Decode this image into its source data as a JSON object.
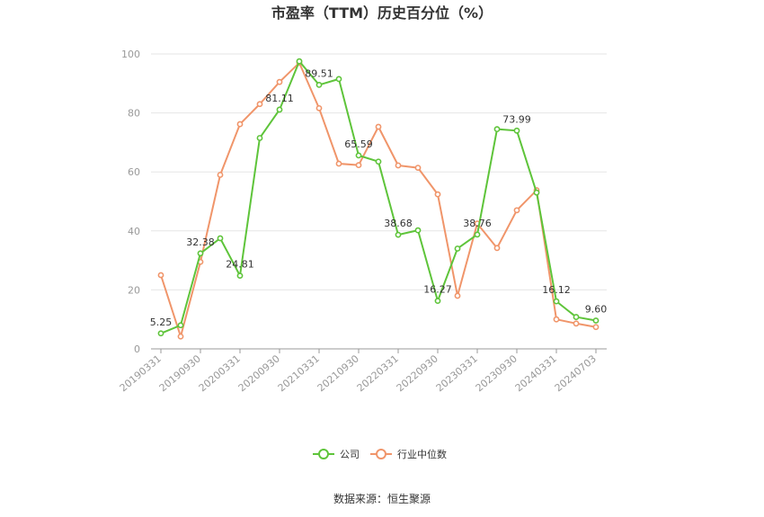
{
  "chart_data": {
    "type": "line",
    "title": "市盈率（TTM）历史百分位（%）",
    "source": "数据来源：恒生聚源",
    "ylim": [
      0,
      100
    ],
    "yticks": [
      0,
      20,
      40,
      60,
      80,
      100
    ],
    "grid": true,
    "legend_position": "bottom",
    "x": [
      "20190331",
      "20190630",
      "20190930",
      "20191231",
      "20200331",
      "20200630",
      "20200930",
      "20201231",
      "20210331",
      "20210630",
      "20210930",
      "20211231",
      "20220331",
      "20220630",
      "20220930",
      "20221231",
      "20230331",
      "20230630",
      "20230930",
      "20231231",
      "20240331",
      "20240630",
      "20240703"
    ],
    "xticks": [
      "20190331",
      "20190930",
      "20200331",
      "20200930",
      "20210331",
      "20210930",
      "20220331",
      "20220930",
      "20230331",
      "20230930",
      "20240331",
      "20240703"
    ],
    "series": [
      {
        "name": "公司",
        "color": "#5ec43a",
        "values": [
          5.25,
          8.0,
          32.38,
          37.5,
          24.81,
          71.5,
          81.11,
          97.5,
          89.51,
          91.5,
          65.59,
          63.5,
          38.68,
          40.2,
          16.27,
          34.0,
          38.76,
          74.5,
          73.99,
          53.0,
          16.12,
          10.8,
          9.6
        ],
        "labels": {
          "0": "5.25",
          "2": "32.38",
          "4": "24.81",
          "6": "81.11",
          "8": "89.51",
          "10": "65.59",
          "12": "38.68",
          "14": "16.27",
          "16": "38.76",
          "18": "73.99",
          "20": "16.12",
          "22": "9.60"
        }
      },
      {
        "name": "行业中位数",
        "color": "#f0956a",
        "values": [
          25.0,
          4.2,
          29.5,
          59.0,
          76.2,
          83.0,
          90.5,
          97.0,
          81.6,
          62.8,
          62.3,
          75.3,
          62.2,
          61.4,
          52.4,
          18.0,
          42.5,
          34.2,
          47.0,
          53.8,
          10.0,
          8.6,
          7.4
        ]
      }
    ]
  }
}
